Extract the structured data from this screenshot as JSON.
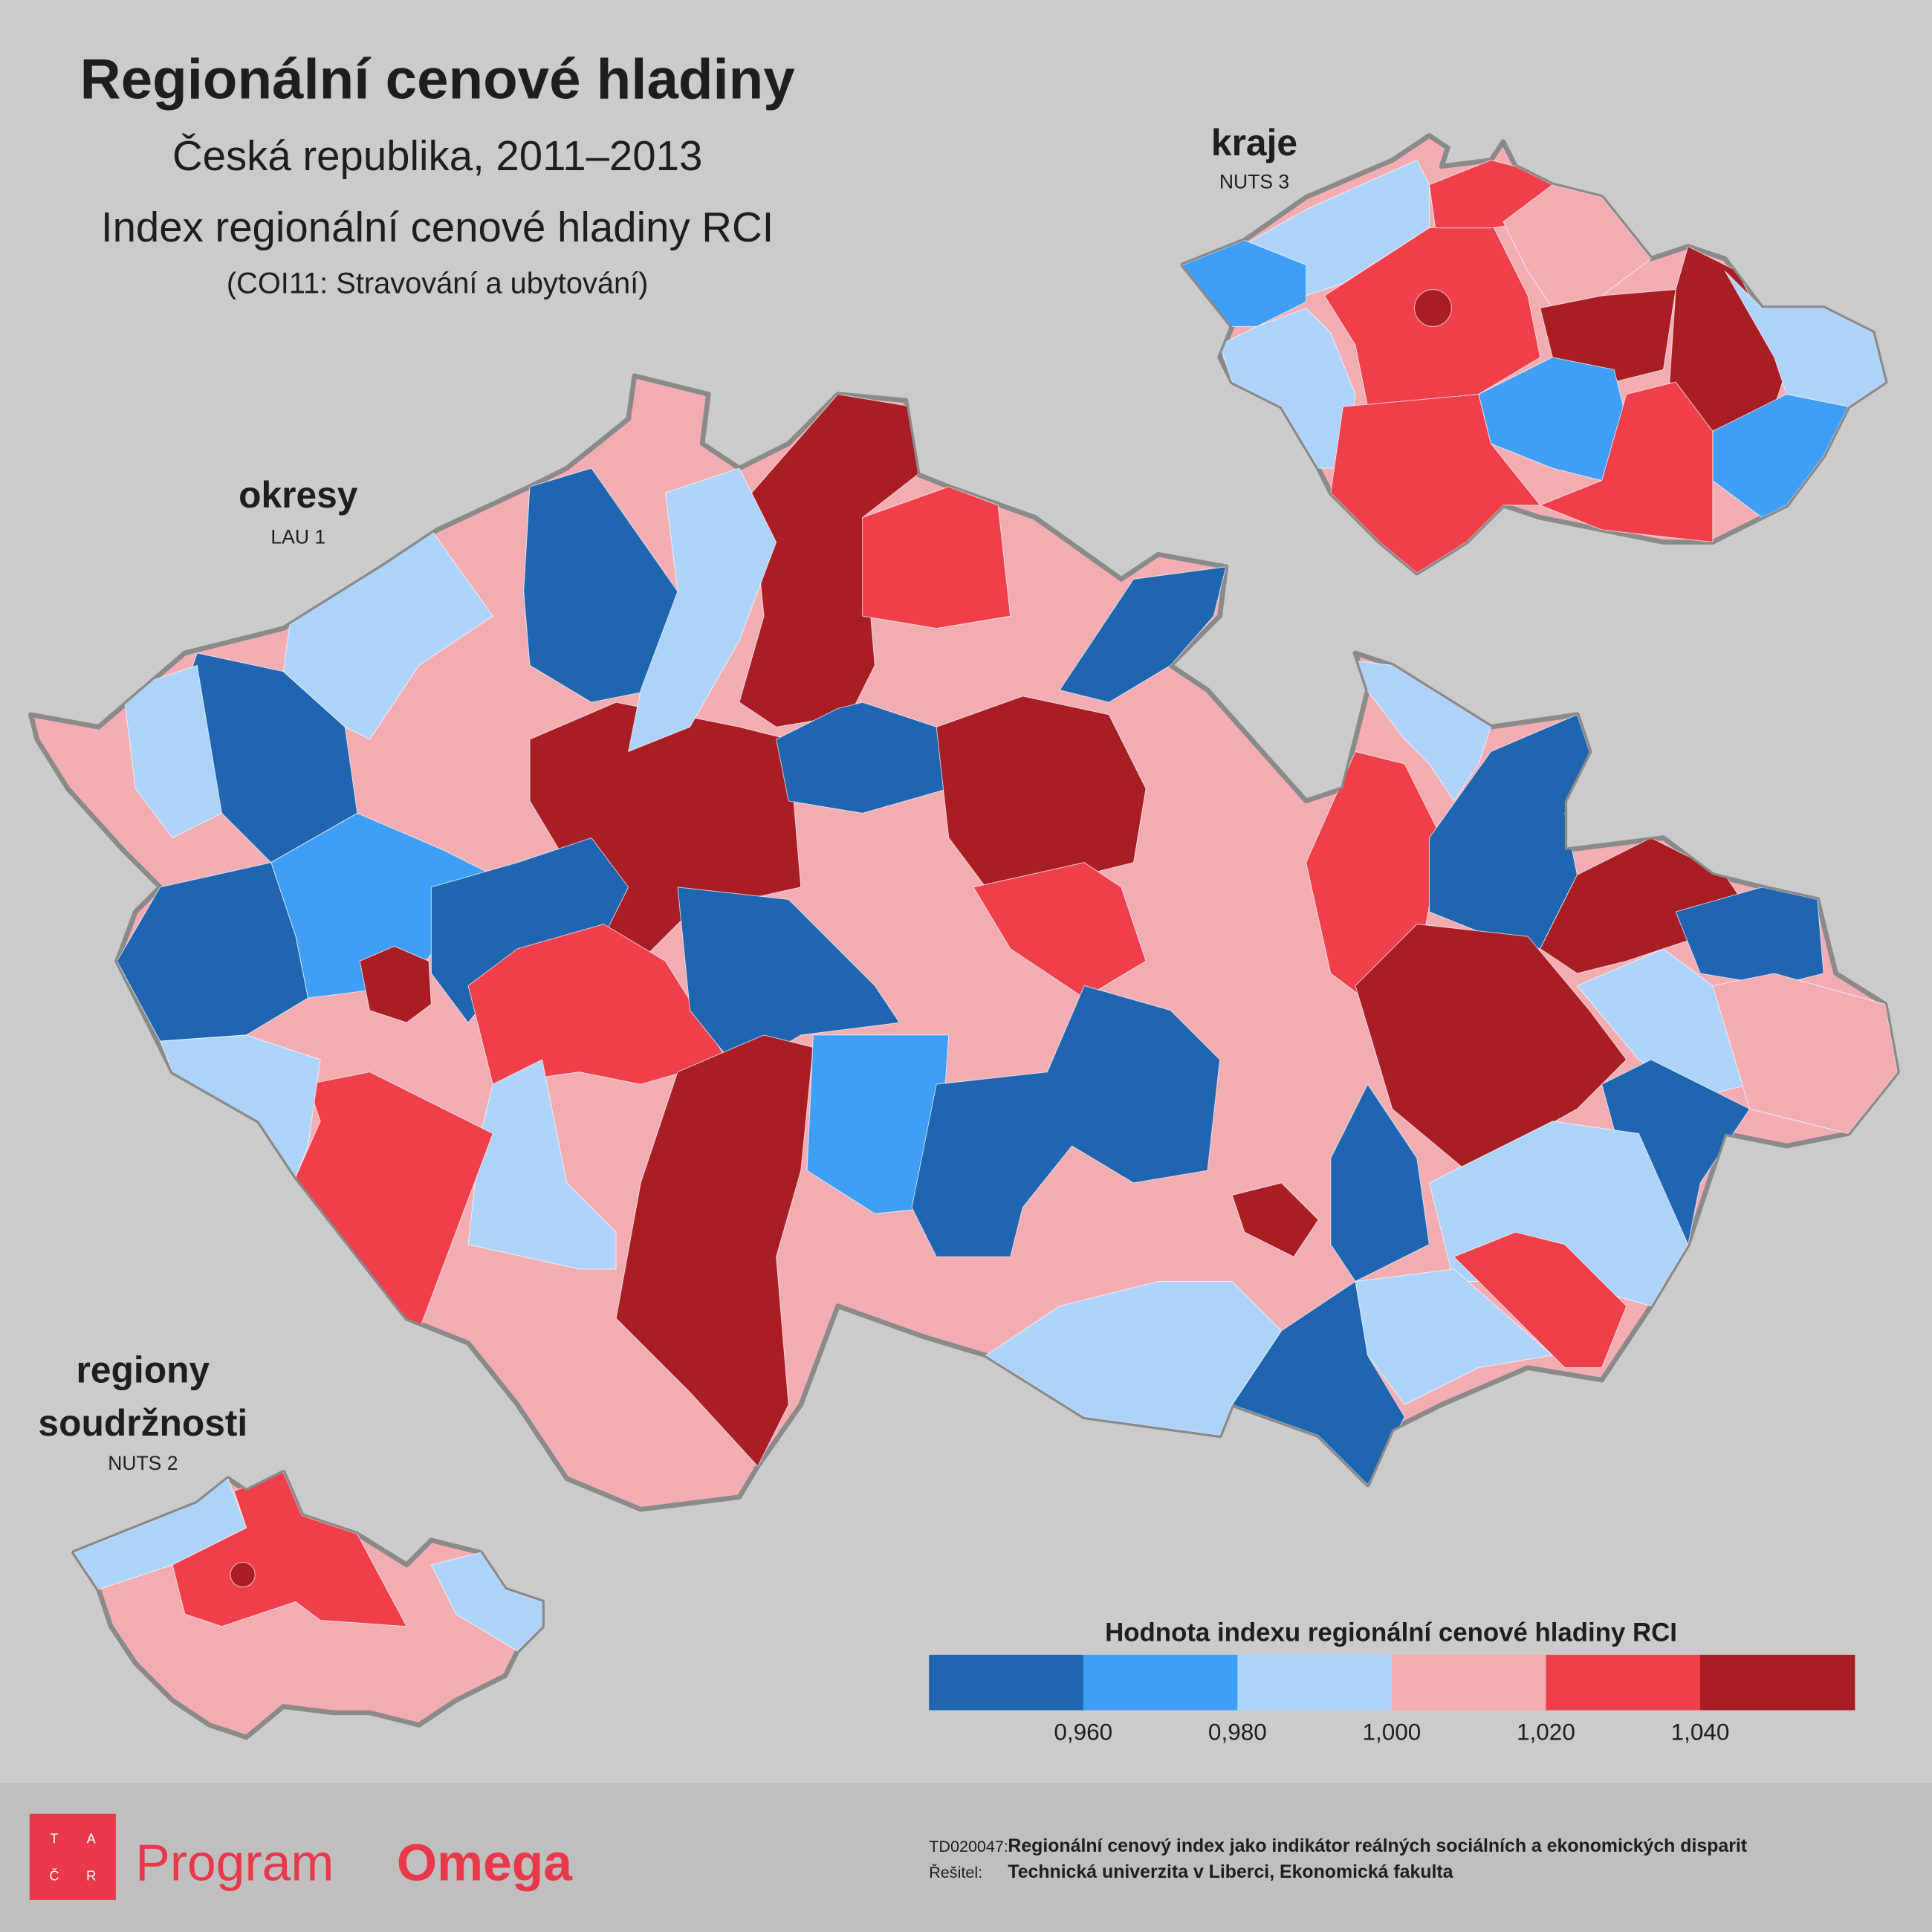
{
  "header": {
    "title": "Regionální cenové hladiny",
    "subtitle": "Česká republika, 2011–2013",
    "index_name": "Index regionální cenové hladiny RCI",
    "category": "(COI11: Stravování a ubytování)"
  },
  "maps": {
    "okresy": {
      "label": "okresy",
      "level": "LAU 1"
    },
    "kraje": {
      "label": "kraje",
      "level": "NUTS 3"
    },
    "regiony": {
      "label_lines": [
        "regiony",
        "soudržnosti"
      ],
      "level": "NUTS 2"
    }
  },
  "legend": {
    "title": "Hodnota indexu regionální cenové hladiny RCI",
    "colors": [
      "#1f65b0",
      "#3f9ef5",
      "#aed3fb",
      "#f2adb2",
      "#ef3f4a",
      "#a81e24"
    ],
    "ticks": [
      "0,960",
      "0,980",
      "1,000",
      "1,020",
      "1,040"
    ]
  },
  "footer": {
    "logo_letters": [
      "T",
      "A",
      "Č",
      "R"
    ],
    "program": "Program",
    "program_name": "Omega",
    "project_code": "TD020047:",
    "project_title": "Regionální cenový index jako indikátor reálných sociálních a ekonomických disparit",
    "investigator_label": "Řešitel:",
    "investigator": "Technická univerzita v Liberci, Ekonomická fakulta"
  }
}
